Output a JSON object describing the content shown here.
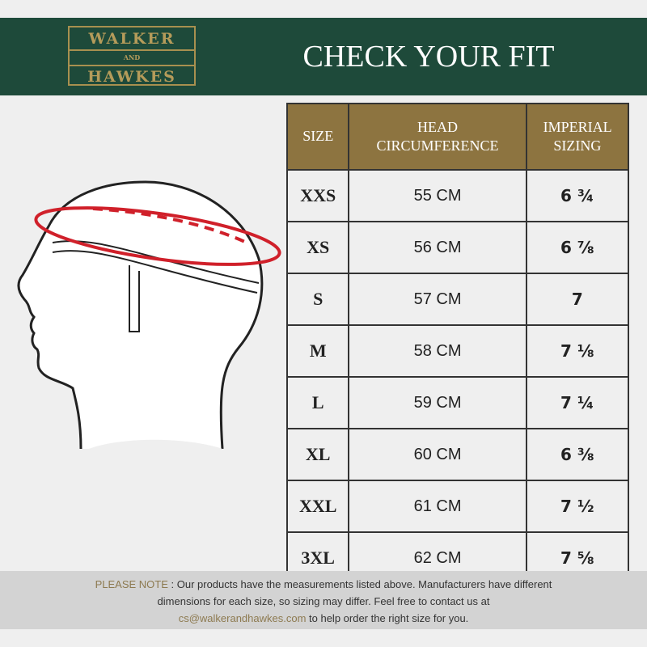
{
  "brand": {
    "line1": "WALKER",
    "line2": "AND",
    "line3": "HAWKES"
  },
  "title": "CHECK YOUR FIT",
  "table": {
    "headers": [
      "SIZE",
      "HEAD CIRCUMFERENCE",
      "IMPERIAL SIZING"
    ],
    "rows": [
      [
        "XXS",
        "55 CM",
        "6 ¾"
      ],
      [
        "XS",
        "56 CM",
        "6 ⅞"
      ],
      [
        "S",
        "57 CM",
        "7"
      ],
      [
        "M",
        "58 CM",
        "7 ⅛"
      ],
      [
        "L",
        "59 CM",
        "7 ¼"
      ],
      [
        "XL",
        "60 CM",
        "6 ⅜"
      ],
      [
        "XXL",
        "61 CM",
        "7 ½"
      ],
      [
        "3XL",
        "62 CM",
        "7 ⅝"
      ]
    ]
  },
  "note": {
    "label": "PLEASE NOTE",
    "text1": " : Our products have the measurements listed above. Manufacturers have different",
    "text2": "dimensions for each size, so sizing may differ. Feel free to contact us at",
    "email": "cs@walkerandhawkes.com",
    "text3": " to help order the right size for you."
  },
  "colors": {
    "header": "#1e4a3a",
    "gold": "#8d7440",
    "measure_line": "#d0202a"
  }
}
